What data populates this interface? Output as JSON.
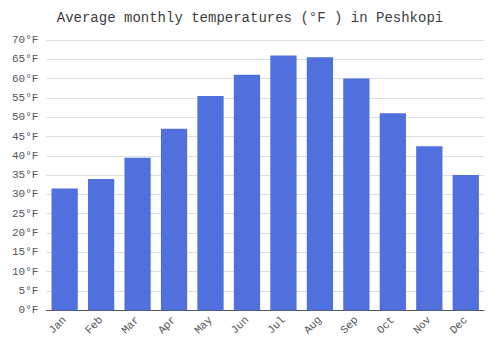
{
  "chart_data": {
    "type": "bar",
    "title": "Average monthly temperatures (°F ) in Peshkopi",
    "categories": [
      "Jan",
      "Feb",
      "Mar",
      "Apr",
      "May",
      "Jun",
      "Jul",
      "Aug",
      "Sep",
      "Oct",
      "Nov",
      "Dec"
    ],
    "values": [
      31.5,
      34.0,
      39.5,
      47.0,
      55.5,
      61.0,
      66.0,
      65.5,
      60.0,
      51.0,
      42.5,
      35.0
    ],
    "ylim": [
      0,
      70
    ],
    "yticks": [
      {
        "value": 0,
        "label": "0°F"
      },
      {
        "value": 5,
        "label": "5°F"
      },
      {
        "value": 10,
        "label": "10°F"
      },
      {
        "value": 15,
        "label": "15°F"
      },
      {
        "value": 20,
        "label": "20°F"
      },
      {
        "value": 25,
        "label": "25°F"
      },
      {
        "value": 30,
        "label": "30°F"
      },
      {
        "value": 35,
        "label": "35°F"
      },
      {
        "value": 40,
        "label": "40°F"
      },
      {
        "value": 45,
        "label": "45°F"
      },
      {
        "value": 50,
        "label": "50°F"
      },
      {
        "value": 55,
        "label": "55°F"
      },
      {
        "value": 60,
        "label": "60°F"
      },
      {
        "value": 65,
        "label": "65°F"
      },
      {
        "value": 70,
        "label": "70°F"
      }
    ],
    "grid": true
  }
}
